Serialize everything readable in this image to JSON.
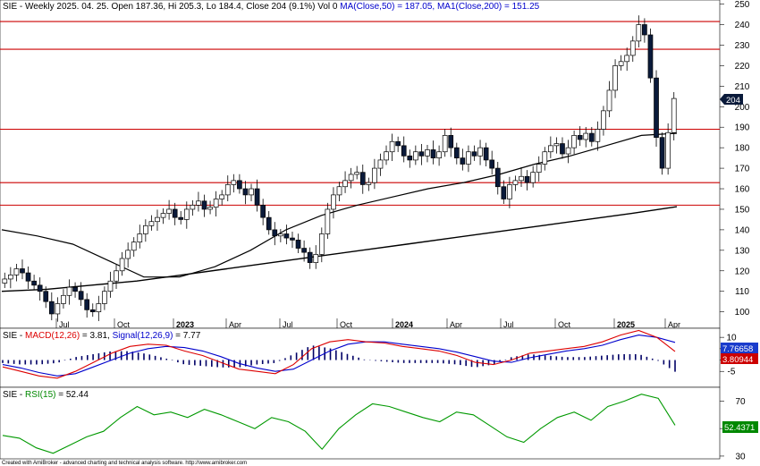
{
  "price_panel": {
    "title_parts": [
      {
        "text": "SIE - Weekly 2025. 04. 25. Open 187.36, Hi 205.3, Lo 184.4, Close 204 (9.1%) Vol 0 ",
        "color": "#000000"
      },
      {
        "text": "MA(Close,50) = 187.05, ",
        "color": "#0000cc"
      },
      {
        "text": "MA1(Close,200) = 151.25",
        "color": "#0000cc"
      }
    ],
    "last_price_label": "204"
  },
  "macd_panel": {
    "title_parts": [
      {
        "text": "SIE - ",
        "color": "#000000"
      },
      {
        "text": "MACD(12,26)",
        "color": "#dd0000"
      },
      {
        "text": " = 3.81, ",
        "color": "#000000"
      },
      {
        "text": "Signal(12,26,9)",
        "color": "#0000cc"
      },
      {
        "text": " = 7.77",
        "color": "#000000"
      }
    ],
    "signal_label": "7.76658",
    "macd_label": "3.80944"
  },
  "rsi_panel": {
    "title_parts": [
      {
        "text": "SIE - ",
        "color": "#000000"
      },
      {
        "text": "RSI(15)",
        "color": "#008800"
      },
      {
        "text": " = 52.44",
        "color": "#000000"
      }
    ],
    "rsi_label": "52.4371"
  },
  "footer": "Created with AmiBroker - advanced charting and technical analysis software. http://www.amibroker.com",
  "colors": {
    "hline": "#cc0000",
    "ma": "#000000",
    "macd": "#dd0000",
    "signal": "#0000cc",
    "histogram": "#000066",
    "rsi": "#009900",
    "up_candle": "#ffffff",
    "down_candle": "#0a1a3a",
    "badge_price": "#0a1a3a",
    "badge_signal": "#1a3ccc",
    "badge_macd": "#cc0000",
    "badge_rsi": "#008800"
  },
  "chart_data": [
    {
      "type": "candlestick",
      "title": "SIE - Weekly",
      "y_ticks": [
        100,
        110,
        120,
        130,
        140,
        150,
        160,
        170,
        180,
        190,
        200,
        210,
        220,
        230,
        240,
        250
      ],
      "ylim": [
        92,
        252
      ],
      "x_labels": [
        "Jul",
        "Oct",
        "2023",
        "Apr",
        "Jul",
        "Oct",
        "2024",
        "Apr",
        "Jul",
        "Oct",
        "2025",
        "Apr"
      ],
      "horizontal_lines": [
        241.5,
        228,
        189,
        163,
        152
      ],
      "series": [
        {
          "name": "MA(Close,50)",
          "values_sampled": [
            140,
            137,
            133,
            125,
            117,
            117,
            122,
            130,
            140,
            147,
            152,
            156,
            160,
            163,
            167,
            172,
            176,
            181,
            186,
            187.05
          ]
        },
        {
          "name": "MA1(Close,200)",
          "values_sampled": [
            110,
            111,
            113,
            115,
            118,
            121,
            124,
            127,
            130,
            133,
            136,
            139,
            142,
            145,
            148,
            151.25
          ]
        }
      ],
      "closes": [
        116,
        118,
        121,
        119,
        115,
        113,
        110,
        105,
        99,
        104,
        108,
        112,
        110,
        106,
        101,
        100,
        104,
        110,
        115,
        120,
        126,
        130,
        134,
        138,
        142,
        144,
        146,
        148,
        150,
        146,
        145,
        150,
        152,
        154,
        150,
        151,
        155,
        157,
        162,
        164,
        160,
        157,
        160,
        152,
        146,
        140,
        137,
        138,
        136,
        135,
        131,
        129,
        124,
        128,
        138,
        150,
        157,
        161,
        164,
        167,
        168,
        162,
        163,
        170,
        174,
        178,
        183,
        181,
        176,
        174,
        178,
        176,
        179,
        175,
        178,
        186,
        180,
        175,
        172,
        178,
        176,
        180,
        174,
        170,
        161,
        155,
        162,
        164,
        166,
        163,
        168,
        172,
        178,
        181,
        182,
        177,
        180,
        186,
        184,
        187,
        183,
        189,
        198,
        208,
        220,
        222,
        225,
        232,
        240,
        235,
        214,
        185,
        170,
        187.36,
        204
      ]
    },
    {
      "type": "line",
      "title": "MACD(12,26)",
      "y_ticks": [
        10,
        5,
        0,
        -5
      ],
      "ylim": [
        -12,
        14
      ],
      "series": [
        {
          "name": "MACD(12,26)",
          "values_sampled": [
            -3,
            -5,
            -7,
            -8,
            -5,
            -1,
            3,
            6,
            7,
            6.5,
            4,
            2,
            -1,
            -4,
            -5,
            -6,
            -2,
            5,
            8,
            9,
            8,
            7.5,
            6,
            5,
            4,
            2,
            -1,
            -2,
            0,
            3,
            4,
            5,
            6,
            8,
            11,
            13,
            10,
            3.81
          ]
        },
        {
          "name": "Signal(12,26,9)",
          "values_sampled": [
            -2,
            -3.5,
            -5.5,
            -7,
            -6,
            -3,
            0,
            3,
            5,
            6,
            5.5,
            4,
            1.5,
            -1.5,
            -3.5,
            -5,
            -4,
            0,
            4,
            7,
            8,
            8,
            7,
            6,
            5,
            3.5,
            1.5,
            -0.5,
            -1,
            1,
            2.5,
            4,
            5,
            6.5,
            9,
            11,
            10,
            7.77
          ]
        }
      ]
    },
    {
      "type": "line",
      "title": "RSI(15)",
      "y_ticks": [
        70,
        50,
        30
      ],
      "ylim": [
        28,
        80
      ],
      "series": [
        {
          "name": "RSI(15)",
          "values_sampled": [
            45,
            43,
            36,
            32,
            38,
            44,
            48,
            58,
            66,
            60,
            62,
            58,
            64,
            60,
            55,
            50,
            58,
            55,
            48,
            35,
            50,
            60,
            68,
            66,
            62,
            58,
            55,
            62,
            60,
            52,
            44,
            40,
            50,
            58,
            62,
            56,
            66,
            70,
            75,
            72,
            52.44
          ]
        }
      ]
    }
  ]
}
